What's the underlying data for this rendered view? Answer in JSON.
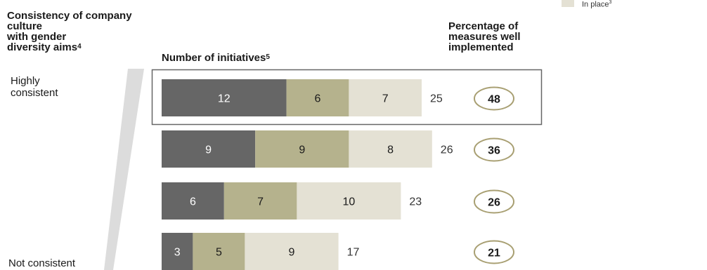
{
  "legend": {
    "item_label": "In place",
    "item_mark": "3",
    "color": "#e4e1d4"
  },
  "headers": {
    "culture_line1": "Consistency of company",
    "culture_line2": "culture",
    "culture_line3": "with gender",
    "culture_line4": "diversity aims",
    "culture_mark": "4",
    "initiatives": "Number of initiatives",
    "initiatives_mark": "5",
    "pct_line1": "Percentage of",
    "pct_line2": "measures well",
    "pct_line3": "implemented"
  },
  "scale_labels": {
    "top_line1": "Highly",
    "top_line2": "consistent",
    "bottom": "Not consistent"
  },
  "colors": {
    "segment_1": "#666666",
    "segment_2": "#b5b28d",
    "segment_3": "#e4e1d4",
    "circle_border": "#a89f72",
    "wedge": "#dcdcdc",
    "highlight_box": "#666666"
  },
  "chart_data": {
    "type": "bar",
    "orientation": "horizontal",
    "stacked": true,
    "categories": [
      "Highly consistent",
      "",
      "",
      "Not consistent"
    ],
    "series": [
      {
        "values": [
          12,
          9,
          6,
          3
        ]
      },
      {
        "values": [
          6,
          9,
          7,
          5
        ]
      },
      {
        "name": "In place",
        "values": [
          7,
          8,
          10,
          9
        ]
      }
    ],
    "totals": [
      25,
      26,
      23,
      17
    ],
    "percent_well_implemented": [
      48,
      36,
      26,
      21
    ],
    "highlighted_row": 0
  }
}
